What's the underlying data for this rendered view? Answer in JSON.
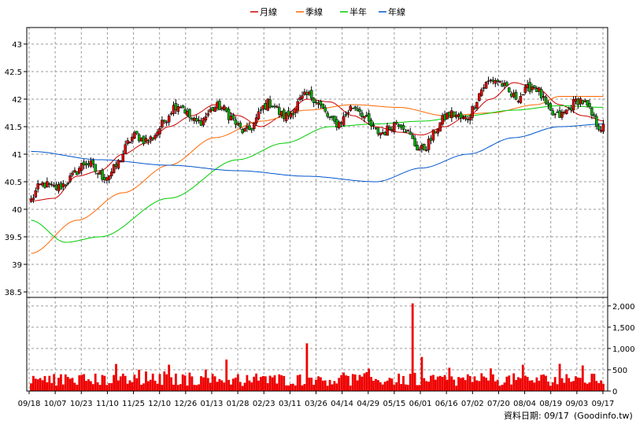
{
  "chart_data": {
    "type": "candlestick",
    "legend": [
      {
        "label": "月線",
        "color": "#cc0000"
      },
      {
        "label": "季線",
        "color": "#ff6600"
      },
      {
        "label": "半年",
        "color": "#00cc00"
      },
      {
        "label": "年線",
        "color": "#0055cc"
      }
    ],
    "price_axis": {
      "ylim": [
        38.4,
        43.3
      ],
      "ticks": [
        "43",
        "42.5",
        "42",
        "41.5",
        "41",
        "40.5",
        "40",
        "39.5",
        "39",
        "38.5"
      ],
      "tick_values": [
        43,
        42.5,
        42,
        41.5,
        41,
        40.5,
        40,
        39.5,
        39,
        38.5
      ]
    },
    "volume_axis": {
      "ylim": [
        0,
        2200
      ],
      "ticks": [
        "2,000",
        "1,500",
        "1,000",
        "500",
        "0"
      ],
      "tick_values": [
        2000,
        1500,
        1000,
        500,
        0
      ]
    },
    "x_labels": [
      "09/18",
      "10/07",
      "10/23",
      "11/10",
      "11/25",
      "12/10",
      "12/26",
      "01/13",
      "01/28",
      "02/23",
      "03/11",
      "03/26",
      "04/14",
      "04/29",
      "05/15",
      "06/01",
      "06/16",
      "07/02",
      "07/20",
      "08/04",
      "08/19",
      "09/03",
      "09/17"
    ],
    "moving_average_keypoints": {
      "月線": [
        [
          0,
          40.15
        ],
        [
          10,
          40.2
        ],
        [
          20,
          40.6
        ],
        [
          30,
          40.7
        ],
        [
          40,
          41.0
        ],
        [
          50,
          41.2
        ],
        [
          60,
          41.5
        ],
        [
          70,
          41.7
        ],
        [
          80,
          41.9
        ],
        [
          90,
          41.7
        ],
        [
          100,
          41.5
        ],
        [
          110,
          41.7
        ],
        [
          120,
          42.0
        ],
        [
          130,
          41.95
        ],
        [
          140,
          41.7
        ],
        [
          150,
          41.5
        ],
        [
          160,
          41.4
        ],
        [
          170,
          41.35
        ],
        [
          180,
          41.5
        ],
        [
          190,
          41.7
        ],
        [
          200,
          42.0
        ],
        [
          210,
          42.3
        ],
        [
          220,
          42.2
        ],
        [
          230,
          41.9
        ],
        [
          240,
          41.7
        ],
        [
          250,
          41.6
        ]
      ],
      "季線": [
        [
          0,
          39.2
        ],
        [
          20,
          39.8
        ],
        [
          40,
          40.3
        ],
        [
          60,
          40.8
        ],
        [
          80,
          41.3
        ],
        [
          100,
          41.6
        ],
        [
          120,
          41.8
        ],
        [
          140,
          41.9
        ],
        [
          160,
          41.85
        ],
        [
          180,
          41.7
        ],
        [
          200,
          41.75
        ],
        [
          220,
          41.9
        ],
        [
          230,
          42.05
        ],
        [
          250,
          42.05
        ]
      ],
      "半年": [
        [
          0,
          39.8
        ],
        [
          15,
          39.4
        ],
        [
          30,
          39.5
        ],
        [
          60,
          40.2
        ],
        [
          90,
          40.9
        ],
        [
          110,
          41.2
        ],
        [
          130,
          41.5
        ],
        [
          150,
          41.55
        ],
        [
          170,
          41.6
        ],
        [
          190,
          41.7
        ],
        [
          210,
          41.8
        ],
        [
          230,
          41.88
        ],
        [
          250,
          41.85
        ]
      ],
      "年線": [
        [
          0,
          41.05
        ],
        [
          30,
          40.9
        ],
        [
          60,
          40.8
        ],
        [
          90,
          40.7
        ],
        [
          120,
          40.6
        ],
        [
          150,
          40.5
        ],
        [
          170,
          40.75
        ],
        [
          190,
          41.0
        ],
        [
          210,
          41.3
        ],
        [
          230,
          41.5
        ],
        [
          250,
          41.55
        ]
      ]
    },
    "n_days": 250,
    "volume_spikes": [
      [
        60,
        620
      ],
      [
        85,
        740
      ],
      [
        120,
        1120
      ],
      [
        170,
        800
      ],
      [
        166,
        2060
      ],
      [
        200,
        530
      ],
      [
        230,
        640
      ],
      [
        240,
        600
      ]
    ]
  },
  "footer": {
    "date_label": "資料日期: 09/17",
    "source": "(Goodinfo.tw)"
  }
}
